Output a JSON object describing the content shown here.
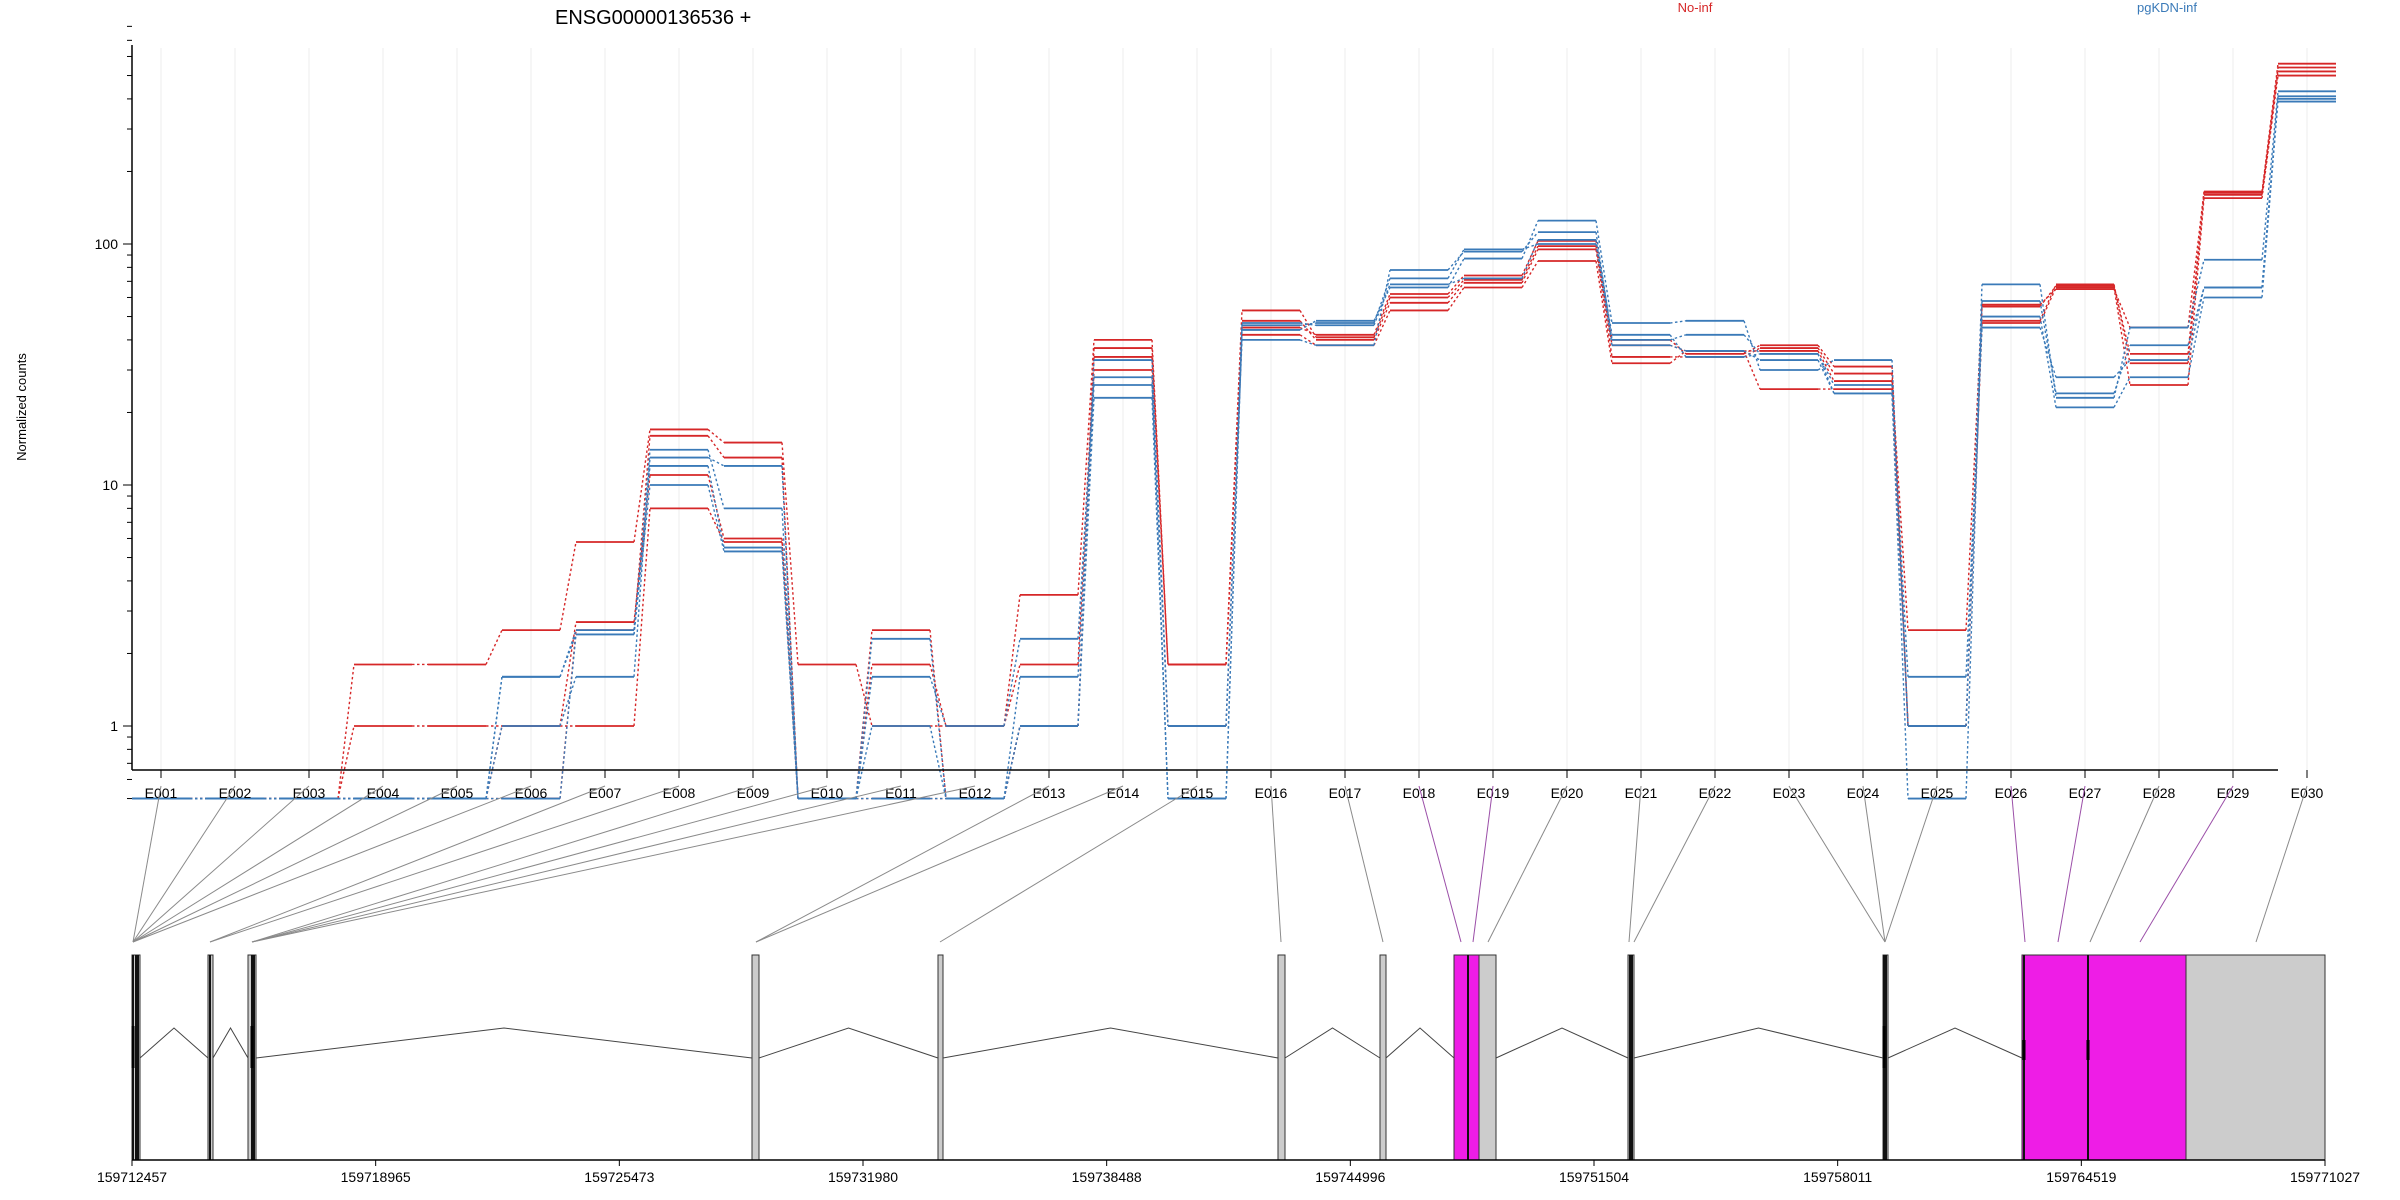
{
  "chart_data": {
    "type": "line",
    "title": "ENSG00000136536 +",
    "ylabel": "Normalized counts",
    "yscale": "log",
    "ylim": [
      0.5,
      820
    ],
    "yticks": [
      1,
      10,
      100
    ],
    "ytick_labels": [
      "1",
      "10",
      "100"
    ],
    "grid": true,
    "legend_placement": "top",
    "legend": [
      {
        "label": "No-inf",
        "color": "#d62728"
      },
      {
        "label": "pgKDN-inf",
        "color": "#3a7ab8"
      }
    ],
    "categories": [
      "E001",
      "E002",
      "E003",
      "E004",
      "E005",
      "E006",
      "E007",
      "E008",
      "E009",
      "E010",
      "E011",
      "E012",
      "E013",
      "E014",
      "E015",
      "E016",
      "E017",
      "E018",
      "E019",
      "E020",
      "E021",
      "E022",
      "E023",
      "E024",
      "E025",
      "E026",
      "E027",
      "E028",
      "E029",
      "E030"
    ],
    "series": [
      {
        "group": "No-inf",
        "color": "#d62728",
        "values": [
          0.5,
          0.5,
          0.5,
          1.0,
          1.0,
          1.0,
          1.0,
          8,
          5.8,
          0.5,
          0.5,
          0.5,
          1.0,
          30,
          1.0,
          42,
          38,
          53,
          66,
          85,
          32,
          36,
          25,
          25,
          1.0,
          47,
          66,
          26,
          155,
          500
        ]
      },
      {
        "group": "No-inf",
        "color": "#d62728",
        "values": [
          0.5,
          0.5,
          0.5,
          1.8,
          1.8,
          2.5,
          5.8,
          17,
          15,
          1.8,
          1.0,
          1.0,
          1.8,
          34,
          1.8,
          48,
          40,
          57,
          69,
          95,
          34,
          34,
          37,
          29,
          1.0,
          48,
          68,
          32,
          160,
          520
        ]
      },
      {
        "group": "No-inf",
        "color": "#d62728",
        "values": [
          0.5,
          0.5,
          0.5,
          0.5,
          0.5,
          1.0,
          2.7,
          11,
          6,
          0.5,
          1.8,
          1.0,
          3.5,
          40,
          1.8,
          53,
          41,
          60,
          71,
          98,
          38,
          36,
          36,
          27,
          2.5,
          55,
          67,
          35,
          163,
          540
        ]
      },
      {
        "group": "No-inf",
        "color": "#d62728",
        "values": [
          0.5,
          0.5,
          0.5,
          0.5,
          0.5,
          0.5,
          2.5,
          16,
          13,
          0.5,
          2.5,
          0.5,
          1.0,
          37,
          1.8,
          45,
          42,
          62,
          74,
          103,
          40,
          35,
          38,
          31,
          1.0,
          56,
          65,
          45,
          165,
          560
        ]
      },
      {
        "group": "pgKDN-inf",
        "color": "#3a7ab8",
        "values": [
          0.5,
          0.5,
          0.5,
          0.5,
          0.5,
          1.0,
          1.6,
          13,
          12,
          0.5,
          0.5,
          0.5,
          1.0,
          23,
          0.5,
          44,
          48,
          66,
          87,
          125,
          47,
          48,
          30,
          33,
          1.0,
          68,
          23,
          45,
          86,
          430
        ]
      },
      {
        "group": "pgKDN-inf",
        "color": "#3a7ab8",
        "values": [
          0.5,
          0.5,
          0.5,
          0.5,
          0.5,
          1.6,
          2.4,
          10,
          5.3,
          0.5,
          2.3,
          0.5,
          1.6,
          26,
          1.0,
          40,
          38,
          78,
          93,
          112,
          40,
          42,
          35,
          26,
          1.6,
          45,
          28,
          33,
          66,
          410
        ]
      },
      {
        "group": "pgKDN-inf",
        "color": "#3a7ab8",
        "values": [
          0.5,
          0.5,
          0.5,
          0.5,
          0.5,
          0.5,
          2.4,
          14,
          8,
          0.5,
          1.6,
          1.0,
          2.3,
          28,
          0.5,
          46,
          47,
          72,
          95,
          100,
          38,
          36,
          33,
          24,
          0.5,
          58,
          24,
          38,
          66,
          390
        ]
      },
      {
        "group": "pgKDN-inf",
        "color": "#3a7ab8",
        "values": [
          0.5,
          0.5,
          0.5,
          0.5,
          0.5,
          1.6,
          2.5,
          12,
          5.5,
          0.5,
          1.0,
          0.5,
          1.0,
          33,
          1.0,
          47,
          46,
          68,
          72,
          104,
          42,
          34,
          35,
          24,
          1.0,
          50,
          21,
          28,
          60,
          400
        ]
      }
    ],
    "genome_track": {
      "positions": [
        "159712457",
        "159718965",
        "159725473",
        "159731980",
        "159738488",
        "159744996",
        "159751504",
        "159758011",
        "159764519",
        "159771027"
      ],
      "exon_highlight_color": "#ee1de6",
      "exon_plain_color": "#cccccc"
    }
  }
}
